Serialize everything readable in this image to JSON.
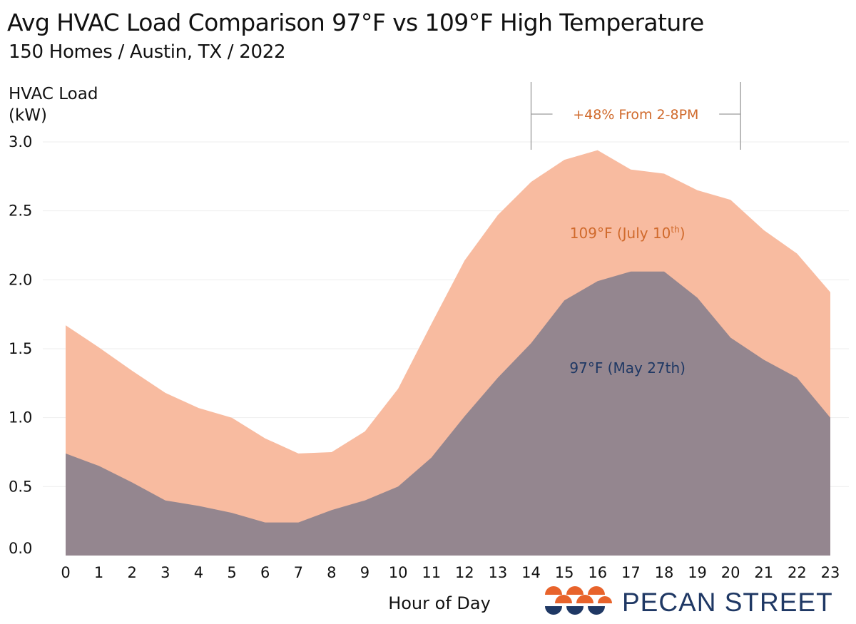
{
  "chart_data": {
    "type": "area",
    "title": "Avg HVAC Load Comparison 97°F vs 109°F High Temperature",
    "subtitle": "150 Homes / Austin, TX / 2022",
    "ylabel_line1": "HVAC Load",
    "ylabel_line2": "(kW)",
    "xlabel": "Hour of Day",
    "ylim": [
      0,
      3.0
    ],
    "yticks": [
      "0.0",
      "0.5",
      "1.0",
      "1.5",
      "2.0",
      "2.5",
      "3.0"
    ],
    "categories": [
      "0",
      "1",
      "2",
      "3",
      "4",
      "5",
      "6",
      "7",
      "8",
      "9",
      "10",
      "11",
      "12",
      "13",
      "14",
      "15",
      "16",
      "17",
      "18",
      "19",
      "20",
      "21",
      "22",
      "23"
    ],
    "series": [
      {
        "name": "109°F (July 10th)",
        "label_main": "109°F (July 10",
        "label_sup": "th",
        "label_end": ")",
        "color": "#f8bba0",
        "text_color": "#d06a2c",
        "values": [
          1.67,
          1.51,
          1.34,
          1.18,
          1.07,
          1.0,
          0.85,
          0.74,
          0.75,
          0.9,
          1.21,
          1.68,
          2.14,
          2.47,
          2.71,
          2.87,
          2.94,
          2.8,
          2.77,
          2.65,
          2.58,
          2.36,
          2.19,
          1.91
        ]
      },
      {
        "name": "97°F (May 27th)",
        "color": "#94868f",
        "text_color": "#1f3864",
        "values": [
          0.74,
          0.65,
          0.53,
          0.4,
          0.36,
          0.31,
          0.24,
          0.24,
          0.33,
          0.4,
          0.5,
          0.71,
          1.01,
          1.29,
          1.54,
          1.85,
          1.99,
          2.06,
          2.06,
          1.87,
          1.58,
          1.42,
          1.29,
          1.0
        ]
      }
    ],
    "annotation": {
      "text": "+48% From 2-8PM",
      "color": "#d06a2c",
      "from_hour": 14,
      "to_hour": 20.3
    }
  },
  "logo": {
    "text": "PECAN STREET",
    "color": "#1f3864",
    "accent": "#e8632b"
  }
}
